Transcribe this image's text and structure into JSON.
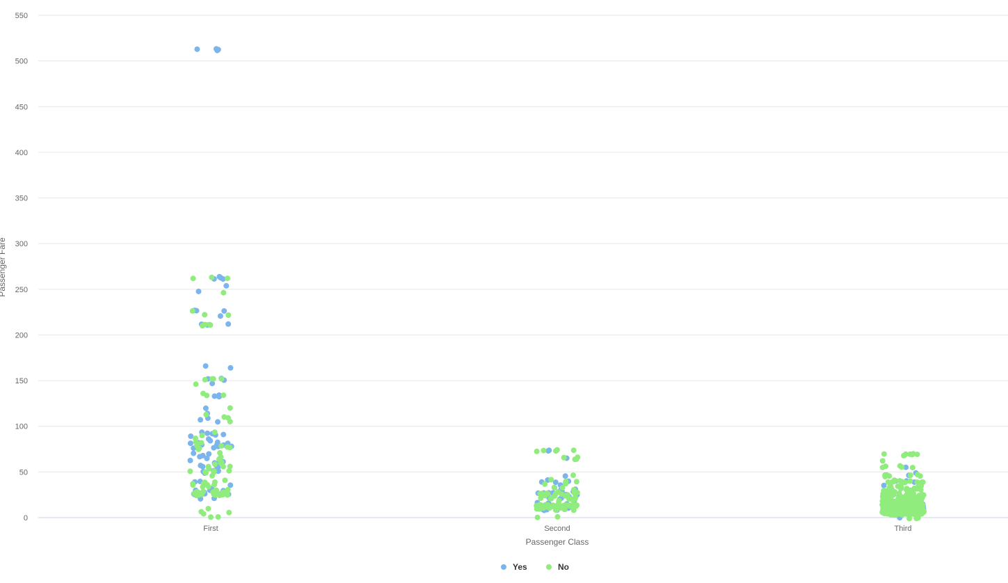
{
  "chart_data": {
    "type": "scatter",
    "title": "",
    "xlabel": "Passenger Class",
    "ylabel": "Passenger Fare",
    "categories": [
      "First",
      "Second",
      "Third"
    ],
    "ylim": [
      0,
      550
    ],
    "y_ticks": [
      0,
      50,
      100,
      150,
      200,
      250,
      300,
      350,
      400,
      450,
      500,
      550
    ],
    "y_tick_labels": [
      "0",
      "50",
      "100",
      "150",
      "200",
      "250",
      "300",
      "350",
      "400",
      "450",
      "500",
      "550"
    ],
    "grid": true,
    "legend_position": "bottom-center",
    "jitter": true,
    "series": [
      {
        "name": "Yes",
        "color": "#7cb5ec",
        "points": {
          "First": [
            512,
            512,
            512,
            512,
            263,
            263,
            262,
            262,
            247,
            253,
            227,
            221,
            212,
            211,
            211,
            227,
            227,
            166,
            164,
            153,
            151,
            151,
            146,
            135,
            134,
            133,
            133,
            120,
            113,
            110,
            108,
            106,
            94,
            93,
            91,
            91,
            90,
            89,
            86,
            83,
            83,
            82,
            81,
            81,
            80,
            79,
            79,
            78,
            78,
            77,
            76,
            75,
            71,
            69,
            67,
            66,
            65,
            63,
            61,
            60,
            59,
            57,
            57,
            56,
            55,
            53,
            52,
            52,
            51,
            50,
            49,
            40,
            39,
            35,
            31,
            30,
            30,
            29,
            29,
            27,
            27,
            26,
            26,
            26,
            26,
            26,
            25,
            25,
            24,
            20,
            20
          ],
          "Second": [
            73,
            73,
            65,
            45,
            42,
            41,
            39,
            39,
            37,
            36,
            33,
            31,
            30,
            29,
            29,
            27,
            26,
            26,
            26,
            26,
            26,
            24,
            23,
            23,
            21,
            21,
            21,
            18,
            16,
            15,
            14,
            13,
            13,
            13,
            13,
            13,
            13,
            12,
            12,
            11,
            10,
            10,
            10,
            10,
            10,
            9,
            8,
            8
          ],
          "Third": [
            56,
            49,
            46,
            41,
            40,
            39,
            34,
            31,
            29,
            27,
            24,
            23,
            22,
            20,
            19,
            18,
            17,
            16,
            16,
            15,
            15,
            14,
            13,
            12,
            12,
            12,
            11,
            11,
            11,
            10,
            10,
            9,
            9,
            9,
            9,
            8,
            8,
            8,
            8,
            8,
            8,
            7,
            7,
            7,
            7,
            7,
            7,
            7,
            7,
            7,
            7,
            7,
            7,
            7,
            7,
            6,
            6,
            0
          ]
        }
      },
      {
        "name": "No",
        "color": "#90ed7d",
        "points": {
          "First": [
            263,
            263,
            262,
            247,
            227,
            221,
            221,
            211,
            211,
            211,
            211,
            153,
            151,
            151,
            151,
            146,
            136,
            134,
            133,
            120,
            113,
            110,
            108,
            106,
            93,
            90,
            86,
            83,
            82,
            80,
            79,
            78,
            77,
            76,
            75,
            71,
            66,
            63,
            61,
            61,
            59,
            57,
            56,
            55,
            53,
            52,
            52,
            51,
            50,
            50,
            49,
            47,
            42,
            40,
            39,
            38,
            36,
            35,
            35,
            35,
            34,
            33,
            31,
            30,
            30,
            29,
            29,
            28,
            28,
            27,
            27,
            27,
            26,
            26,
            26,
            26,
            26,
            26,
            26,
            26,
            26,
            26,
            25,
            25,
            25,
            25,
            25,
            25,
            10,
            7,
            5,
            5,
            0,
            0
          ],
          "Second": [
            73,
            73,
            73,
            73,
            73,
            65,
            65,
            65,
            65,
            46,
            42,
            39,
            39,
            37,
            36,
            33,
            32,
            30,
            29,
            27,
            26,
            26,
            26,
            26,
            26,
            26,
            26,
            26,
            24,
            24,
            23,
            23,
            21,
            21,
            21,
            21,
            21,
            21,
            21,
            19,
            18,
            16,
            15,
            15,
            15,
            14,
            14,
            13,
            13,
            13,
            13,
            13,
            13,
            13,
            13,
            13,
            13,
            13,
            13,
            13,
            13,
            13,
            13,
            13,
            13,
            13,
            13,
            13,
            13,
            13,
            13,
            12,
            12,
            11,
            11,
            11,
            10,
            10,
            10,
            10,
            10,
            10,
            10,
            10,
            10,
            10,
            9,
            8,
            0,
            0
          ],
          "Third": [
            70,
            70,
            70,
            69,
            69,
            69,
            69,
            69,
            63,
            56,
            56,
            56,
            56,
            56,
            47,
            47,
            46,
            46,
            46,
            46,
            46,
            40,
            40,
            40,
            39,
            39,
            39,
            39,
            39,
            39,
            39,
            39,
            39,
            34,
            34,
            34,
            34,
            34,
            34,
            34,
            34,
            31,
            31,
            31,
            31,
            31,
            31,
            31,
            31,
            31,
            29,
            29,
            29,
            29,
            29,
            27,
            27,
            27,
            27,
            27,
            25,
            25,
            25,
            25,
            25,
            24,
            24,
            24,
            24,
            24,
            24,
            24,
            24,
            23,
            23,
            23,
            23,
            23,
            23,
            22,
            22,
            22,
            22,
            22,
            21,
            21,
            21,
            21,
            21,
            20,
            20,
            20,
            20,
            20,
            20,
            20,
            19,
            19,
            19,
            19,
            19,
            19,
            18,
            18,
            18,
            18,
            18,
            18,
            18,
            17,
            17,
            17,
            17,
            17,
            17,
            17,
            17,
            16,
            16,
            16,
            16,
            16,
            16,
            16,
            16,
            16,
            16,
            15,
            15,
            15,
            15,
            15,
            15,
            15,
            15,
            15,
            15,
            15,
            15,
            14,
            14,
            14,
            14,
            14,
            14,
            14,
            14,
            14,
            14,
            14,
            14,
            14,
            14,
            14,
            13,
            13,
            13,
            13,
            13,
            13,
            13,
            13,
            13,
            13,
            13,
            13,
            13,
            13,
            13,
            13,
            12,
            12,
            12,
            12,
            12,
            12,
            12,
            12,
            12,
            12,
            12,
            12,
            12,
            12,
            11,
            11,
            11,
            11,
            11,
            11,
            11,
            11,
            11,
            11,
            11,
            11,
            11,
            11,
            11,
            11,
            10,
            10,
            10,
            10,
            10,
            10,
            10,
            10,
            10,
            10,
            10,
            10,
            10,
            10,
            10,
            10,
            10,
            10,
            9,
            9,
            9,
            9,
            9,
            9,
            9,
            9,
            9,
            9,
            9,
            9,
            9,
            9,
            9,
            9,
            9,
            9,
            9,
            9,
            8,
            8,
            8,
            8,
            8,
            8,
            8,
            8,
            8,
            8,
            8,
            8,
            8,
            8,
            8,
            8,
            8,
            8,
            8,
            8,
            8,
            8,
            8,
            8,
            8,
            8,
            8,
            8,
            8,
            8,
            8,
            8,
            8,
            8,
            8,
            8,
            8,
            8,
            8,
            8,
            8,
            8,
            8,
            8,
            8,
            8,
            8,
            8,
            8,
            8,
            8,
            8,
            7,
            7,
            7,
            7,
            7,
            7,
            7,
            7,
            7,
            7,
            7,
            7,
            7,
            7,
            7,
            7,
            7,
            7,
            7,
            7,
            7,
            7,
            7,
            7,
            7,
            7,
            7,
            7,
            7,
            7,
            7,
            7,
            7,
            7,
            7,
            7,
            7,
            7,
            7,
            7,
            7,
            7,
            7,
            7,
            7,
            7,
            7,
            7,
            7,
            7,
            7,
            7,
            7,
            7,
            7,
            7,
            7,
            7,
            7,
            7,
            7,
            7,
            7,
            7,
            7,
            7,
            7,
            7,
            7,
            7,
            7,
            7,
            7,
            7,
            7,
            7,
            7,
            7,
            7,
            7,
            7,
            7,
            7,
            7,
            7,
            7,
            7,
            7,
            7,
            7,
            7,
            7,
            7,
            7,
            7,
            7,
            7,
            6,
            6,
            6,
            6,
            6,
            6,
            6,
            6,
            6,
            6,
            6,
            6,
            6,
            6,
            5,
            5,
            5,
            5,
            5,
            5,
            5,
            5,
            5,
            5,
            5,
            5,
            5,
            4,
            4,
            4,
            4,
            4,
            4,
            4,
            4,
            4,
            4,
            4,
            4,
            4,
            4,
            4,
            4,
            4,
            4,
            4,
            4,
            4,
            4,
            4,
            4,
            0,
            0,
            0
          ]
        }
      }
    ]
  }
}
